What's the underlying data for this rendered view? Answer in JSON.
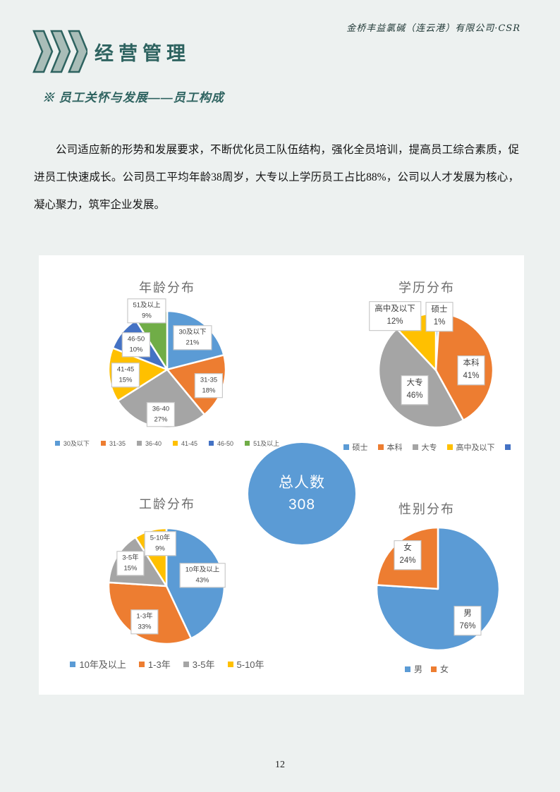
{
  "header": {
    "company": "金桥丰益氯碱（连云港）有限公司·CSR",
    "section_title": "经营管理"
  },
  "subtitle": "※ 员工关怀与发展——员工构成",
  "paragraph": "公司适应新的形势和发展要求，不断优化员工队伍结构，强化全员培训，提高员工综合素质，促进员工快速成长。公司员工平均年龄38周岁，大专以上学历员工占比88%，公司以人才发展为核心，凝心聚力，筑牢企业发展。",
  "total_badge": {
    "label": "总人数",
    "value": "308",
    "color": "#5b9bd5"
  },
  "page_number": "12",
  "colors": {
    "page_background": "#edf1f0",
    "panel_background": "#ffffff",
    "accent_teal": "#2e6360",
    "chevron_fill": "#a9bdb8",
    "chart_text_gray": "#595959"
  },
  "chart_data": [
    {
      "id": "age",
      "type": "pie",
      "title": "年龄分布",
      "categories": [
        "30及以下",
        "31-35",
        "36-40",
        "41-45",
        "46-50",
        "51及以上"
      ],
      "values": [
        21,
        18,
        27,
        15,
        10,
        9
      ],
      "unit": "%",
      "colors": [
        "#5B9BD5",
        "#ED7D31",
        "#A5A5A5",
        "#FFC000",
        "#4472C4",
        "#70AD47"
      ],
      "legend": [
        {
          "label": "30及以下",
          "color": "#5B9BD5"
        },
        {
          "label": "31-35",
          "color": "#ED7D31"
        },
        {
          "label": "36-40",
          "color": "#A5A5A5"
        },
        {
          "label": "41-45",
          "color": "#FFC000"
        },
        {
          "label": "46-50",
          "color": "#4472C4"
        },
        {
          "label": "51及以上",
          "color": "#70AD47"
        }
      ],
      "legend_position": "bottom"
    },
    {
      "id": "edu",
      "type": "pie",
      "title": "学历分布",
      "categories": [
        "硕士",
        "本科",
        "大专",
        "高中及以下"
      ],
      "values": [
        1,
        41,
        46,
        12
      ],
      "unit": "%",
      "colors": [
        "#5B9BD5",
        "#ED7D31",
        "#A5A5A5",
        "#FFC000"
      ],
      "legend": [
        {
          "label": "硕士",
          "color": "#5B9BD5"
        },
        {
          "label": "本科",
          "color": "#ED7D31"
        },
        {
          "label": "大专",
          "color": "#A5A5A5"
        },
        {
          "label": "高中及以下",
          "color": "#FFC000"
        },
        {
          "label": "",
          "color": "#4472C4"
        }
      ],
      "legend_position": "bottom"
    },
    {
      "id": "work",
      "type": "pie",
      "title": "工龄分布",
      "categories": [
        "10年及以上",
        "1-3年",
        "3-5年",
        "5-10年"
      ],
      "values": [
        43,
        33,
        15,
        9
      ],
      "unit": "%",
      "colors": [
        "#5B9BD5",
        "#ED7D31",
        "#A5A5A5",
        "#FFC000"
      ],
      "legend": [
        {
          "label": "10年及以上",
          "color": "#5B9BD5"
        },
        {
          "label": "1-3年",
          "color": "#ED7D31"
        },
        {
          "label": "3-5年",
          "color": "#A5A5A5"
        },
        {
          "label": "5-10年",
          "color": "#FFC000"
        }
      ],
      "legend_position": "bottom"
    },
    {
      "id": "gender",
      "type": "pie",
      "title": "性别分布",
      "categories": [
        "男",
        "女"
      ],
      "values": [
        76,
        24
      ],
      "unit": "%",
      "colors": [
        "#5B9BD5",
        "#ED7D31"
      ],
      "legend": [
        {
          "label": "男",
          "color": "#5B9BD5"
        },
        {
          "label": "女",
          "color": "#ED7D31"
        }
      ],
      "legend_position": "bottom"
    }
  ]
}
